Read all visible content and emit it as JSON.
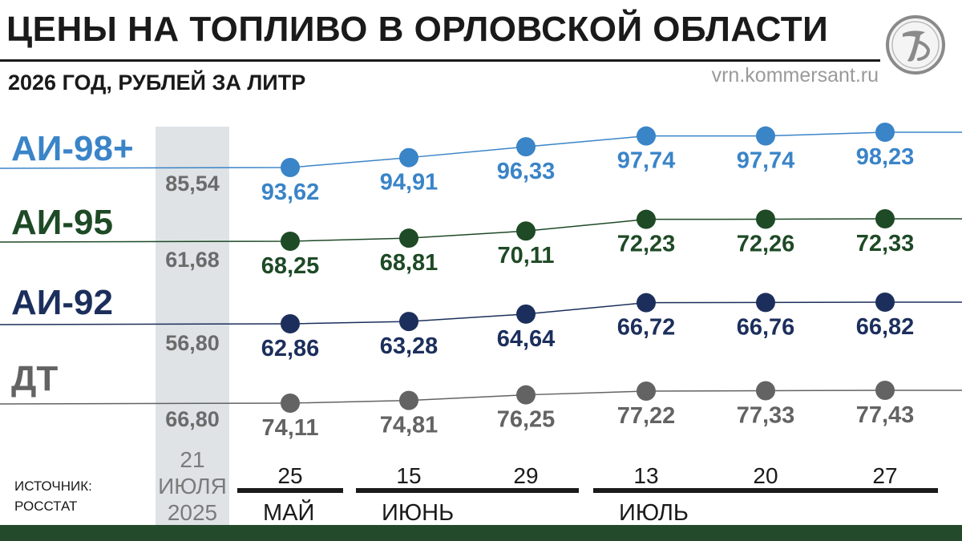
{
  "header": {
    "title": "ЦЕНЫ НА ТОПЛИВО В ОРЛОВСКОЙ ОБЛАСТИ",
    "subtitle": "2026 ГОД, РУБЛЕЙ ЗА ЛИТР",
    "site": "vrn.kommersant.ru",
    "logo_icon": "kommersant-logo-icon"
  },
  "source": {
    "line1": "ИСТОЧНИК:",
    "line2": "РОССТАТ"
  },
  "chart_data": {
    "type": "line",
    "title": "ЦЕНЫ НА ТОПЛИВО В ОРЛОВСКОЙ ОБЛАСТИ",
    "subtitle": "2026 ГОД, РУБЛЕЙ ЗА ЛИТР",
    "baseline": {
      "label_lines": [
        "21",
        "ИЮЛЯ",
        "2025"
      ],
      "color": "#dfe3e6"
    },
    "x": [
      "25",
      "15",
      "29",
      "13",
      "20",
      "27"
    ],
    "months": [
      {
        "name": "МАЙ",
        "from": 0,
        "to": 0
      },
      {
        "name": "ИЮНЬ",
        "from": 1,
        "to": 2
      },
      {
        "name": "ИЮЛЬ",
        "from": 3,
        "to": 5
      }
    ],
    "series": [
      {
        "name": "АИ-98+",
        "color": "#3a84c8",
        "baseline_value": "85,54",
        "values": [
          93.62,
          94.91,
          96.33,
          97.74,
          97.74,
          98.23
        ],
        "labels": [
          "93,62",
          "94,91",
          "96,33",
          "97,74",
          "97,74",
          "98,23"
        ]
      },
      {
        "name": "АИ-95",
        "color": "#1e4a26",
        "baseline_value": "61,68",
        "values": [
          68.25,
          68.81,
          70.11,
          72.23,
          72.26,
          72.33
        ],
        "labels": [
          "68,25",
          "68,81",
          "70,11",
          "72,23",
          "72,26",
          "72,33"
        ]
      },
      {
        "name": "АИ-92",
        "color": "#1c2f5c",
        "baseline_value": "56,80",
        "values": [
          62.86,
          63.28,
          64.64,
          66.72,
          66.76,
          66.82
        ],
        "labels": [
          "62,86",
          "63,28",
          "64,64",
          "66,72",
          "66,76",
          "66,82"
        ]
      },
      {
        "name": "ДТ",
        "color": "#636363",
        "baseline_value": "66,80",
        "values": [
          74.11,
          74.81,
          76.25,
          77.22,
          77.33,
          77.43
        ],
        "labels": [
          "74,11",
          "74,81",
          "76,25",
          "77,22",
          "77,33",
          "77,43"
        ]
      }
    ]
  }
}
